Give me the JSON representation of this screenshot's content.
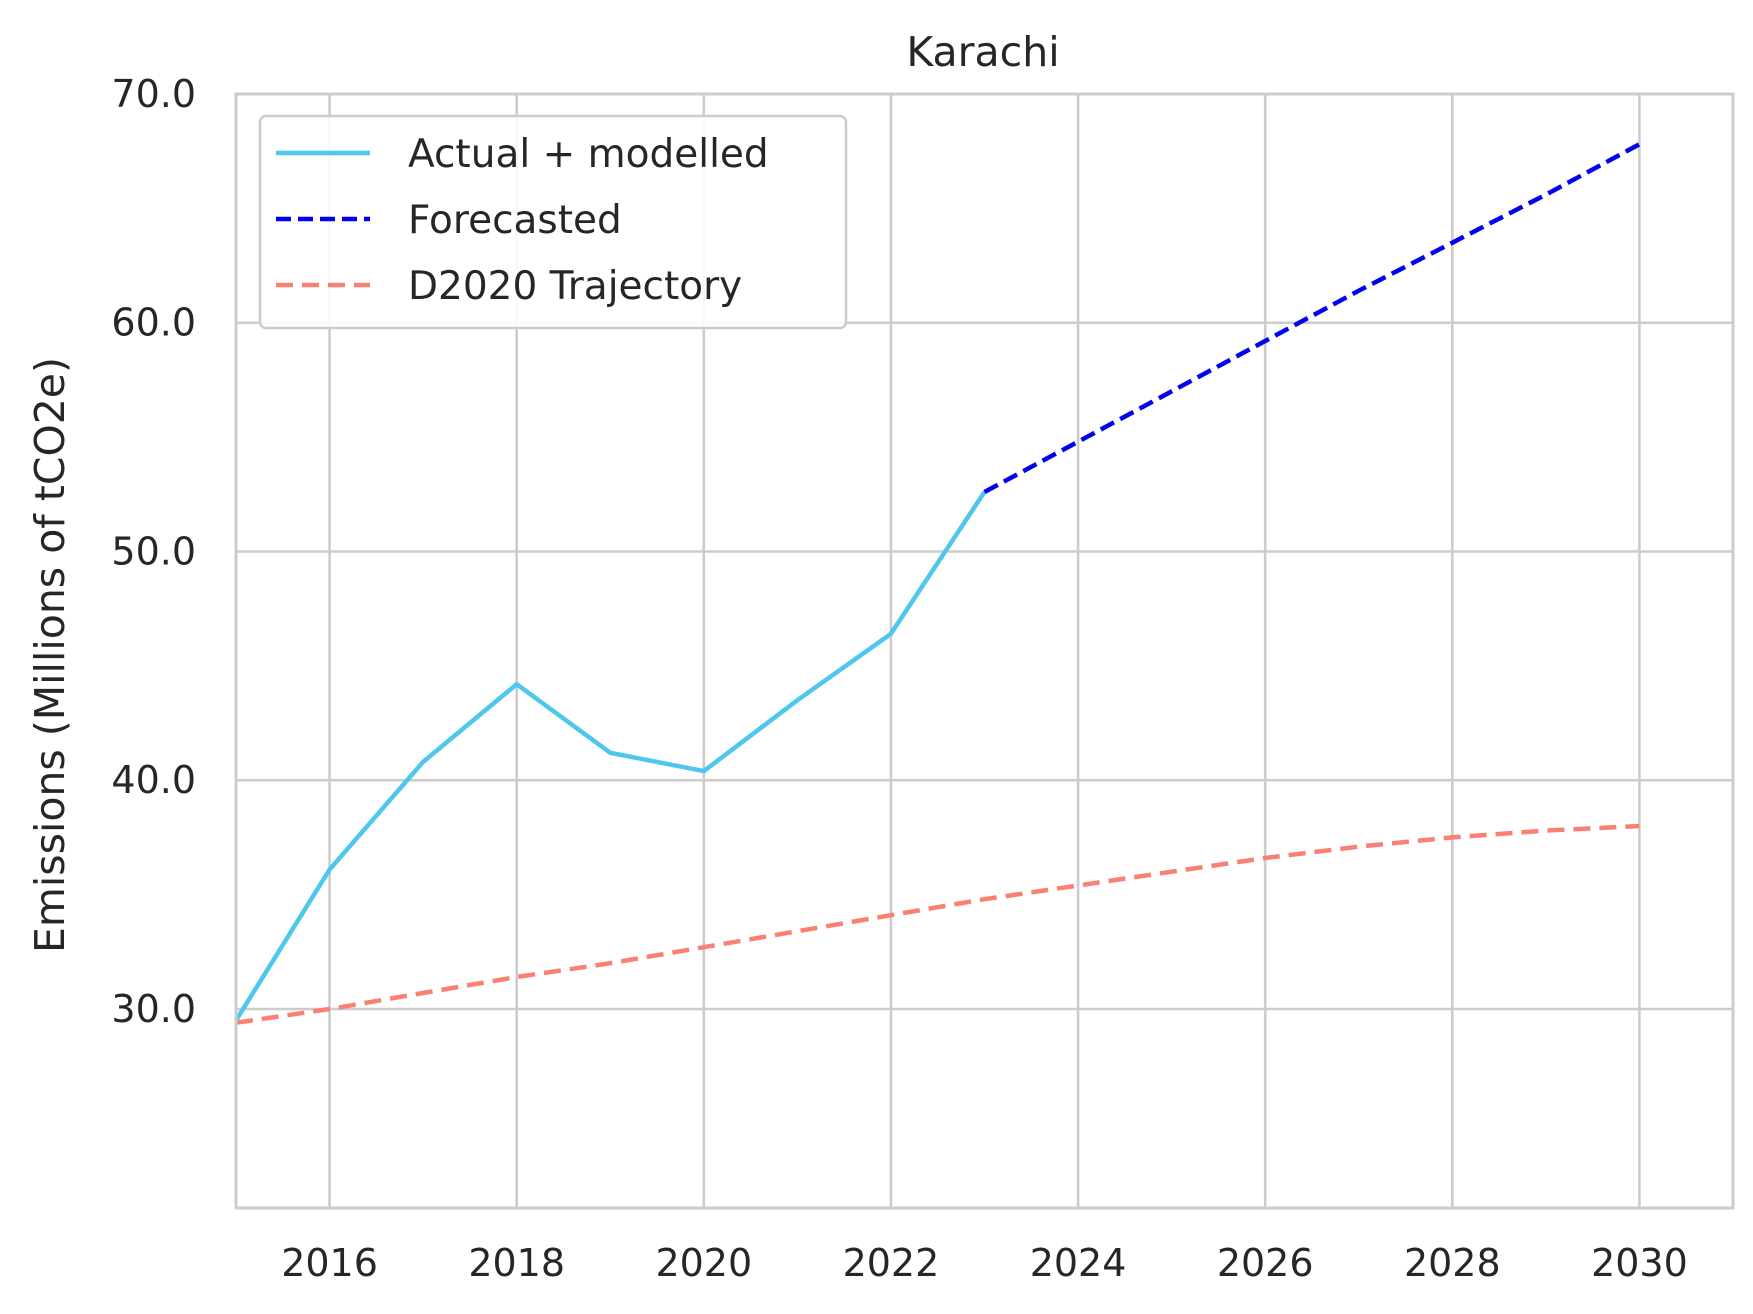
{
  "chart_data": {
    "type": "line",
    "title": "Karachi",
    "xlabel": "",
    "ylabel": "Emissions (Millions of tCO2e)",
    "xlim": [
      2015,
      2031
    ],
    "ylim": [
      21.3,
      70.0
    ],
    "x_ticks": [
      2016,
      2018,
      2020,
      2022,
      2024,
      2026,
      2028,
      2030
    ],
    "y_ticks": [
      30.0,
      40.0,
      50.0,
      60.0,
      70.0
    ],
    "y_tick_labels": [
      "30.0",
      "40.0",
      "50.0",
      "60.0",
      "70.0"
    ],
    "grid": true,
    "legend_position": "top-left",
    "series": [
      {
        "name": "Actual + modelled",
        "color": "#4dc8ec",
        "style": "solid",
        "x": [
          2015,
          2016,
          2017,
          2018,
          2019,
          2020,
          2021,
          2022,
          2023
        ],
        "y": [
          29.5,
          36.1,
          40.8,
          44.2,
          41.2,
          40.4,
          43.5,
          46.4,
          52.6
        ]
      },
      {
        "name": "Forecasted",
        "color": "#0000ee",
        "style": "dashed",
        "x": [
          2023,
          2024,
          2025,
          2026,
          2027,
          2028,
          2029,
          2030
        ],
        "y": [
          52.6,
          54.8,
          57.0,
          59.2,
          61.4,
          63.5,
          65.6,
          67.8
        ]
      },
      {
        "name": "D2020 Trajectory",
        "color": "#fa8072",
        "style": "dashed",
        "x": [
          2015,
          2016,
          2017,
          2018,
          2019,
          2020,
          2021,
          2022,
          2023,
          2024,
          2025,
          2026,
          2027,
          2028,
          2029,
          2030
        ],
        "y": [
          29.4,
          30.0,
          30.7,
          31.4,
          32.0,
          32.7,
          33.4,
          34.1,
          34.8,
          35.4,
          36.0,
          36.6,
          37.1,
          37.5,
          37.8,
          38.0
        ]
      }
    ]
  }
}
